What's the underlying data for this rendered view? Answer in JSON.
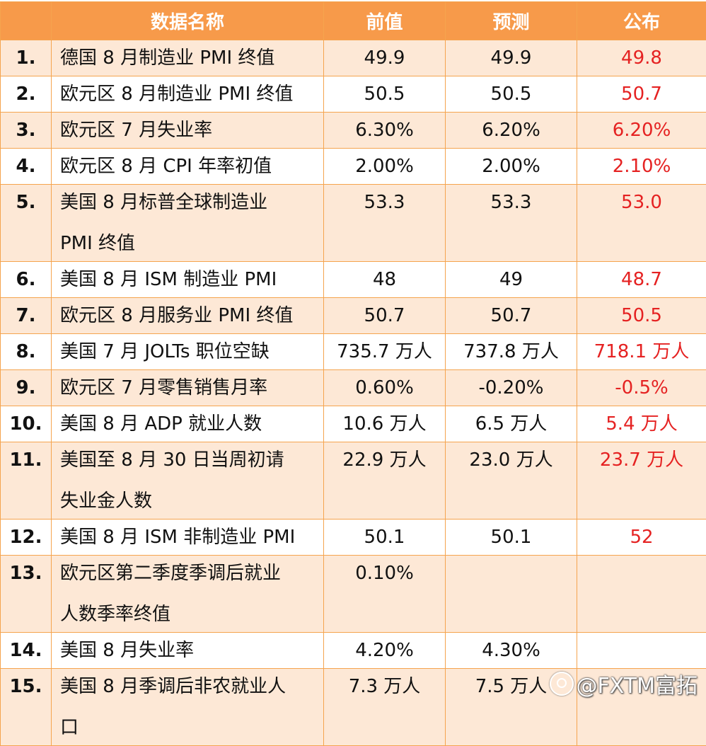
{
  "header": {
    "col_name": "数据名称",
    "col_prev": "前值",
    "col_forecast": "预测",
    "col_actual": "公布"
  },
  "rows": [
    {
      "num": "1.",
      "name_l1": "德国 8 月制造业 PMI 终值",
      "name_l2": "",
      "prev": "49.9",
      "forecast": "49.9",
      "actual": "49.8"
    },
    {
      "num": "2.",
      "name_l1": "欧元区 8 月制造业 PMI 终值",
      "name_l2": "",
      "prev": "50.5",
      "forecast": "50.5",
      "actual": "50.7"
    },
    {
      "num": "3.",
      "name_l1": "欧元区 7 月失业率",
      "name_l2": "",
      "prev": "6.30%",
      "forecast": "6.20%",
      "actual": "6.20%"
    },
    {
      "num": "4.",
      "name_l1": "欧元区 8 月 CPI 年率初值",
      "name_l2": "",
      "prev": "2.00%",
      "forecast": "2.00%",
      "actual": "2.10%"
    },
    {
      "num": "5.",
      "name_l1": "美国 8 月标普全球制造业",
      "name_l2": "PMI 终值",
      "prev": "53.3",
      "forecast": "53.3",
      "actual": "53.0"
    },
    {
      "num": "6.",
      "name_l1": "美国 8 月 ISM 制造业 PMI",
      "name_l2": "",
      "prev": "48",
      "forecast": "49",
      "actual": "48.7"
    },
    {
      "num": "7.",
      "name_l1": "欧元区 8 月服务业 PMI 终值",
      "name_l2": "",
      "prev": "50.7",
      "forecast": "50.7",
      "actual": "50.5"
    },
    {
      "num": "8.",
      "name_l1": "美国 7 月 JOLTs 职位空缺",
      "name_l2": "",
      "prev": "735.7 万人",
      "forecast": "737.8 万人",
      "actual": "718.1 万人"
    },
    {
      "num": "9.",
      "name_l1": "欧元区 7 月零售销售月率",
      "name_l2": "",
      "prev": "0.60%",
      "forecast": "-0.20%",
      "actual": "-0.5%"
    },
    {
      "num": "10.",
      "name_l1": "美国 8 月 ADP 就业人数",
      "name_l2": "",
      "prev": "10.6 万人",
      "forecast": "6.5 万人",
      "actual": "5.4 万人"
    },
    {
      "num": "11.",
      "name_l1": "美国至 8 月 30 日当周初请",
      "name_l2": "失业金人数",
      "prev": "22.9 万人",
      "forecast": "23.0 万人",
      "actual": "23.7 万人"
    },
    {
      "num": "12.",
      "name_l1": "美国 8 月 ISM 非制造业 PMI",
      "name_l2": "",
      "prev": "50.1",
      "forecast": "50.1",
      "actual": "52"
    },
    {
      "num": "13.",
      "name_l1": "欧元区第二季度季调后就业",
      "name_l2": "人数季率终值",
      "prev": "0.10%",
      "forecast": "",
      "actual": ""
    },
    {
      "num": "14.",
      "name_l1": "美国 8 月失业率",
      "name_l2": "",
      "prev": "4.20%",
      "forecast": "4.30%",
      "actual": ""
    },
    {
      "num": "15.",
      "name_l1": "美国 8 月季调后非农就业人",
      "name_l2": "口",
      "prev": "7.3 万人",
      "forecast": "7.5 万人",
      "actual": ""
    }
  ],
  "watermark": {
    "text": "@FXTM富拓",
    "icon": "weibo-icon"
  },
  "colors": {
    "header_bg": "#f79a4a",
    "stripe_bg": "#fde8d6",
    "border": "#f5a44e",
    "actual_text": "#e52222"
  }
}
